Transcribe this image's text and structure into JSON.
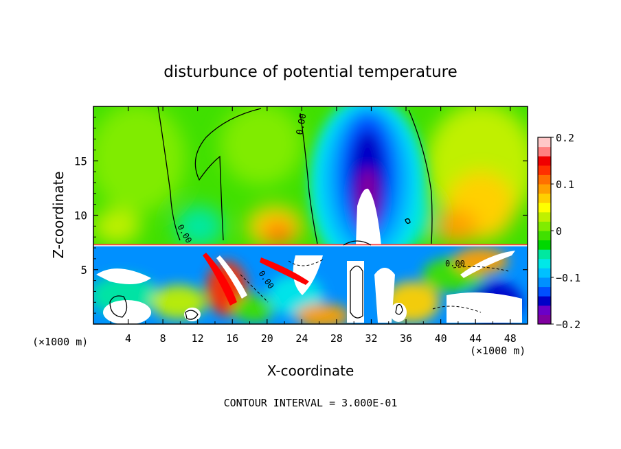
{
  "chart_data": {
    "type": "heatmap",
    "title": "disturbunce of potential temperature",
    "xlabel": "X-coordinate",
    "ylabel": "Z-coordinate",
    "x_unit": "(×1000 m)",
    "y_unit": "(×1000 m)",
    "xlim": [
      0,
      50
    ],
    "ylim": [
      0,
      20
    ],
    "x_ticks": [
      {
        "value": 4,
        "label": "4"
      },
      {
        "value": 8,
        "label": "8"
      },
      {
        "value": 12,
        "label": "12"
      },
      {
        "value": 16,
        "label": "16"
      },
      {
        "value": 20,
        "label": "20"
      },
      {
        "value": 24,
        "label": "24"
      },
      {
        "value": 28,
        "label": "28"
      },
      {
        "value": 32,
        "label": "32"
      },
      {
        "value": 36,
        "label": "36"
      },
      {
        "value": 40,
        "label": "40"
      },
      {
        "value": 44,
        "label": "44"
      },
      {
        "value": 48,
        "label": "48"
      }
    ],
    "y_ticks": [
      {
        "value": 5,
        "label": "5"
      },
      {
        "value": 10,
        "label": "10"
      },
      {
        "value": 15,
        "label": "15"
      }
    ],
    "colorbar": {
      "min": -0.2,
      "max": 0.2,
      "ticks": [
        {
          "value": 0.2,
          "label": "0.2"
        },
        {
          "value": 0.1,
          "label": "0.1"
        },
        {
          "value": 0,
          "label": "0"
        },
        {
          "value": -0.1,
          "label": "−0.1"
        },
        {
          "value": -0.2,
          "label": "−0.2"
        }
      ],
      "colors": [
        "#8000a0",
        "#6a00c8",
        "#0000c8",
        "#0050ff",
        "#0090ff",
        "#00c0ff",
        "#00e8e8",
        "#00e8a0",
        "#00d800",
        "#40e000",
        "#80ec00",
        "#c0f000",
        "#ffff00",
        "#ffd000",
        "#ffa000",
        "#ff7000",
        "#ff3000",
        "#f00000",
        "#ff8080",
        "#ffc8c8"
      ]
    },
    "contour_labels": [
      "0.00",
      "0.00",
      "0.00",
      "0.00"
    ],
    "contour_interval_text": "CONTOUR INTERVAL = 3.000E-01",
    "grid": false
  }
}
